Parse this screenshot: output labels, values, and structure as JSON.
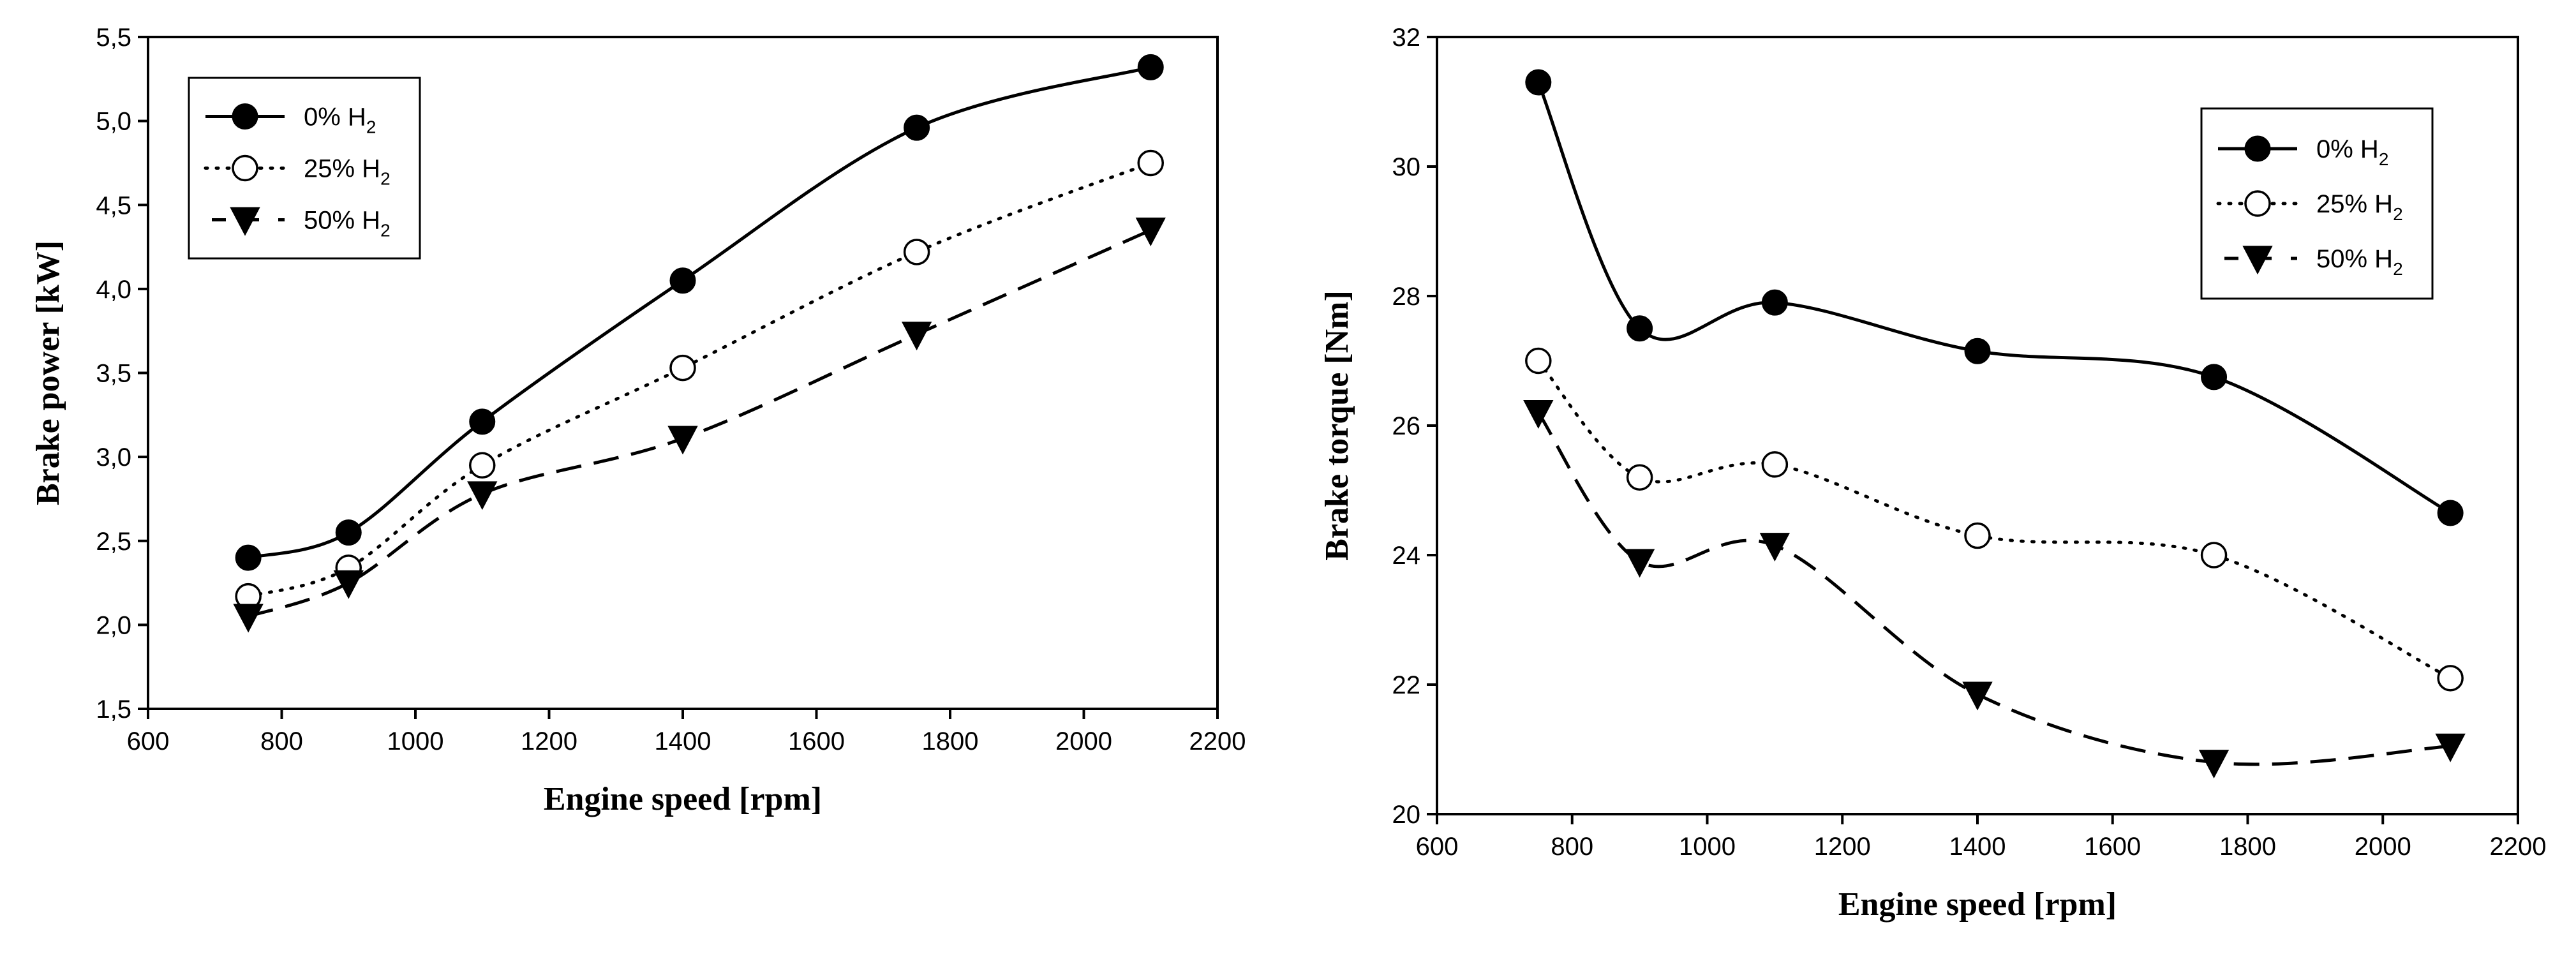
{
  "chart_data": [
    {
      "type": "line",
      "title": "",
      "xlabel": "Engine speed [rpm]",
      "ylabel": "Brake power [kW]",
      "xlim": [
        600,
        2200
      ],
      "ylim": [
        1.5,
        5.5
      ],
      "x_ticks": [
        600,
        800,
        1000,
        1200,
        1400,
        1600,
        1800,
        2000,
        2200
      ],
      "x_tick_labels": [
        "600",
        "800",
        "1000",
        "1200",
        "1400",
        "1600",
        "1800",
        "2000",
        "2200"
      ],
      "y_ticks": [
        1.5,
        2.0,
        2.5,
        3.0,
        3.5,
        4.0,
        4.5,
        5.0,
        5.5
      ],
      "y_tick_labels": [
        "1,5",
        "2,0",
        "2,5",
        "3,0",
        "3,5",
        "4,0",
        "4,5",
        "5,0",
        "5,5"
      ],
      "grid": false,
      "legend_position": "top-left",
      "x": [
        750,
        900,
        1100,
        1400,
        1750,
        2100
      ],
      "series": [
        {
          "name": "0% H",
          "subscript": "2",
          "marker": "filled-circle",
          "linestyle": "solid",
          "values": [
            2.4,
            2.55,
            3.21,
            4.05,
            4.96,
            5.32
          ]
        },
        {
          "name": "25% H",
          "subscript": "2",
          "marker": "open-circle",
          "linestyle": "dotted",
          "values": [
            2.17,
            2.34,
            2.95,
            3.53,
            4.22,
            4.75
          ]
        },
        {
          "name": "50% H",
          "subscript": "2",
          "marker": "filled-triangle-down",
          "linestyle": "dashed",
          "values": [
            2.05,
            2.25,
            2.78,
            3.11,
            3.73,
            4.35
          ]
        }
      ]
    },
    {
      "type": "line",
      "title": "",
      "xlabel": "Engine speed [rpm]",
      "ylabel": "Brake torque [Nm]",
      "xlim": [
        600,
        2200
      ],
      "ylim": [
        20,
        32
      ],
      "x_ticks": [
        600,
        800,
        1000,
        1200,
        1400,
        1600,
        1800,
        2000,
        2200
      ],
      "x_tick_labels": [
        "600",
        "800",
        "1000",
        "1200",
        "1400",
        "1600",
        "1800",
        "2000",
        "2200"
      ],
      "y_ticks": [
        20,
        22,
        24,
        26,
        28,
        30,
        32
      ],
      "y_tick_labels": [
        "20",
        "22",
        "24",
        "26",
        "28",
        "30",
        "32"
      ],
      "grid": false,
      "legend_position": "top-right",
      "x": [
        750,
        900,
        1100,
        1400,
        1750,
        2100
      ],
      "series": [
        {
          "name": "0% H",
          "subscript": "2",
          "marker": "filled-circle",
          "linestyle": "solid",
          "values": [
            31.3,
            27.5,
            27.9,
            27.15,
            26.75,
            24.65
          ]
        },
        {
          "name": "25% H",
          "subscript": "2",
          "marker": "open-circle",
          "linestyle": "dotted",
          "values": [
            27.0,
            25.2,
            25.4,
            24.3,
            24.0,
            22.1
          ]
        },
        {
          "name": "50% H",
          "subscript": "2",
          "marker": "filled-triangle-down",
          "linestyle": "dashed",
          "values": [
            26.2,
            23.9,
            24.15,
            21.85,
            20.8,
            21.05
          ]
        }
      ]
    }
  ]
}
